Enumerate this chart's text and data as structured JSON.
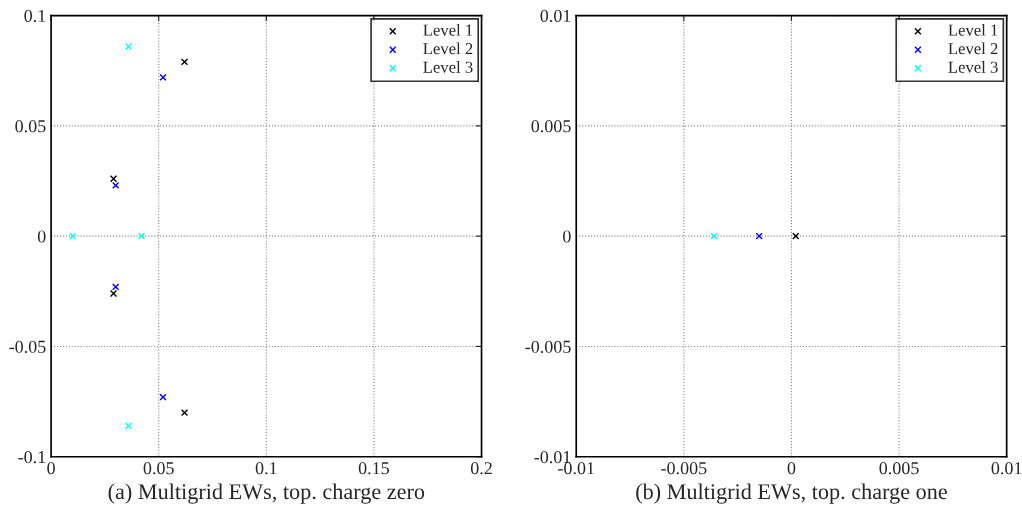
{
  "chart_data": [
    {
      "type": "scatter",
      "xlabel": "(a) Multigrid EWs, top. charge zero",
      "marker": "cross",
      "grid": true,
      "legend": "top right",
      "xlim": [
        0,
        0.2
      ],
      "xticks": [
        0,
        0.05,
        0.1,
        0.15,
        0.2
      ],
      "ylim": [
        -0.1,
        0.1
      ],
      "yticks": [
        -0.1,
        -0.05,
        0,
        0.05,
        0.1
      ],
      "series": [
        {
          "name": "Level 1",
          "color": "#000000",
          "x": [
            0.062,
            0.029,
            0.029,
            0.062
          ],
          "values": [
            0.079,
            0.026,
            -0.026,
            -0.08
          ]
        },
        {
          "name": "Level 2",
          "color": "#0000ff",
          "x": [
            0.052,
            0.03,
            0.03,
            0.052
          ],
          "values": [
            0.072,
            0.023,
            -0.023,
            -0.073
          ]
        },
        {
          "name": "Level 3",
          "color": "#00ffff",
          "x": [
            0.036,
            0.01,
            0.042,
            0.036
          ],
          "values": [
            0.086,
            0,
            0,
            -0.086
          ]
        }
      ]
    },
    {
      "type": "scatter",
      "xlabel": "(b) Multigrid EWs, top. charge one",
      "marker": "cross",
      "grid": true,
      "legend": "top right",
      "xlim": [
        -0.01,
        0.01
      ],
      "xticks": [
        -0.01,
        -0.005,
        0,
        0.005,
        0.01
      ],
      "ylim": [
        -0.01,
        0.01
      ],
      "yticks": [
        -0.01,
        -0.005,
        0,
        0.005,
        0.01
      ],
      "series": [
        {
          "name": "Level 1",
          "color": "#000000",
          "x": [
            0.0002
          ],
          "values": [
            0
          ]
        },
        {
          "name": "Level 2",
          "color": "#0000ff",
          "x": [
            -0.0015
          ],
          "values": [
            0
          ]
        },
        {
          "name": "Level 3",
          "color": "#00ffff",
          "x": [
            -0.0036
          ],
          "values": [
            0
          ]
        }
      ]
    }
  ]
}
